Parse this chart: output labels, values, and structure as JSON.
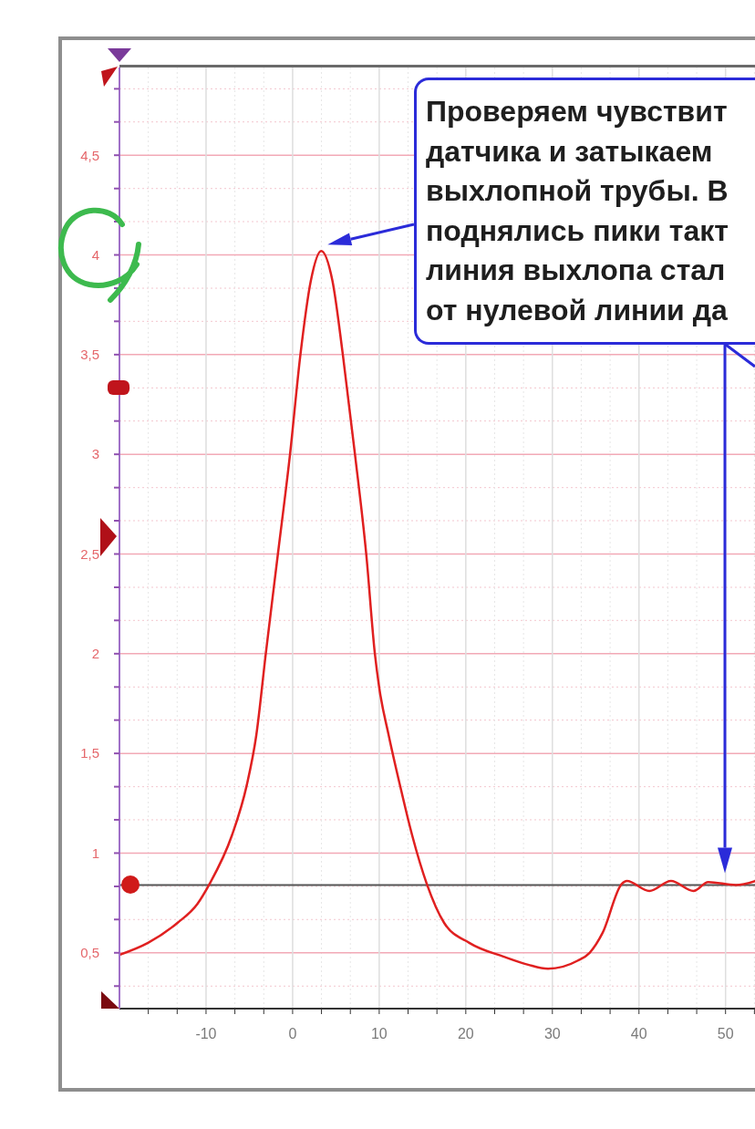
{
  "chart_data": {
    "type": "line",
    "color": "#e02020",
    "x": [
      -20,
      -16.7,
      -13.3,
      -11,
      -9.6,
      -7,
      -5.3,
      -4.2,
      -3.1,
      -1.7,
      -0.3,
      0.9,
      2.1,
      3.3,
      4.6,
      5.8,
      7.2,
      8.5,
      9.5,
      10,
      11.1,
      12.4,
      13.8,
      15.5,
      17.5,
      20.4,
      24.4,
      27.2,
      29.5,
      32.9,
      34.3,
      35.8,
      38,
      38.6,
      41.2,
      43.7,
      46.3,
      48,
      51.2,
      53.4
    ],
    "values": [
      0.49,
      0.55,
      0.65,
      0.745,
      0.845,
      1.09,
      1.34,
      1.59,
      2.0,
      2.5,
      3.0,
      3.5,
      3.87,
      4.02,
      3.87,
      3.5,
      3.0,
      2.5,
      2.0,
      1.83,
      1.59,
      1.34,
      1.09,
      0.845,
      0.65,
      0.55,
      0.48,
      0.44,
      0.42,
      0.46,
      0.5,
      0.6,
      0.845,
      0.86,
      0.81,
      0.86,
      0.81,
      0.855,
      0.84,
      0.86
    ],
    "xlim": [
      -20,
      53.4
    ],
    "ylim": [
      0.22,
      4.94
    ],
    "xticks": [
      {
        "value": -16.667,
        "label": null
      },
      {
        "value": -13.333,
        "label": null
      },
      -10,
      {
        "value": -6.667,
        "label": null
      },
      {
        "value": -3.333,
        "label": null
      },
      0,
      {
        "value": 3.333,
        "label": null
      },
      {
        "value": 6.667,
        "label": null
      },
      10,
      {
        "value": 13.333,
        "label": null
      },
      {
        "value": 16.667,
        "label": null
      },
      20,
      {
        "value": 23.333,
        "label": null
      },
      {
        "value": 26.667,
        "label": null
      },
      30,
      {
        "value": 33.333,
        "label": null
      },
      {
        "value": 36.667,
        "label": null
      },
      40,
      {
        "value": 43.333,
        "label": null
      },
      {
        "value": 46.667,
        "label": null
      },
      50,
      {
        "value": 53.333,
        "label": null
      }
    ],
    "yticks": [
      {
        "value": 0.333,
        "label": null
      },
      {
        "value": 0.5,
        "label": "0,5"
      },
      {
        "value": 0.667,
        "label": null
      },
      {
        "value": 0.833,
        "label": null
      },
      1,
      {
        "value": 1.167,
        "label": null
      },
      {
        "value": 1.333,
        "label": null
      },
      {
        "value": 1.5,
        "label": "1,5"
      },
      {
        "value": 1.667,
        "label": null
      },
      {
        "value": 1.833,
        "label": null
      },
      2,
      {
        "value": 2.167,
        "label": null
      },
      {
        "value": 2.333,
        "label": null
      },
      {
        "value": 2.5,
        "label": "2,5"
      },
      {
        "value": 2.667,
        "label": null
      },
      {
        "value": 2.833,
        "label": null
      },
      3,
      {
        "value": 3.167,
        "label": null
      },
      {
        "value": 3.333,
        "label": null
      },
      {
        "value": 3.5,
        "label": "3,5"
      },
      {
        "value": 3.667,
        "label": null
      },
      {
        "value": 3.833,
        "label": null
      },
      4,
      {
        "value": 4.167,
        "label": null
      },
      {
        "value": 4.333,
        "label": null
      },
      {
        "value": 4.5,
        "label": "4,5"
      },
      {
        "value": 4.667,
        "label": null
      },
      {
        "value": 4.833,
        "label": null
      }
    ],
    "grid": true,
    "ref_lines": [
      {
        "axis": "y",
        "value": 0.84,
        "color": "#555555"
      }
    ],
    "annotations": [
      "Проверяем чувствит\nдатчика и затыкаем\nвыхлопной трубы. В\nподнялись пики такт\nлиния выхлопа стал\nот нулевой линии да"
    ]
  }
}
